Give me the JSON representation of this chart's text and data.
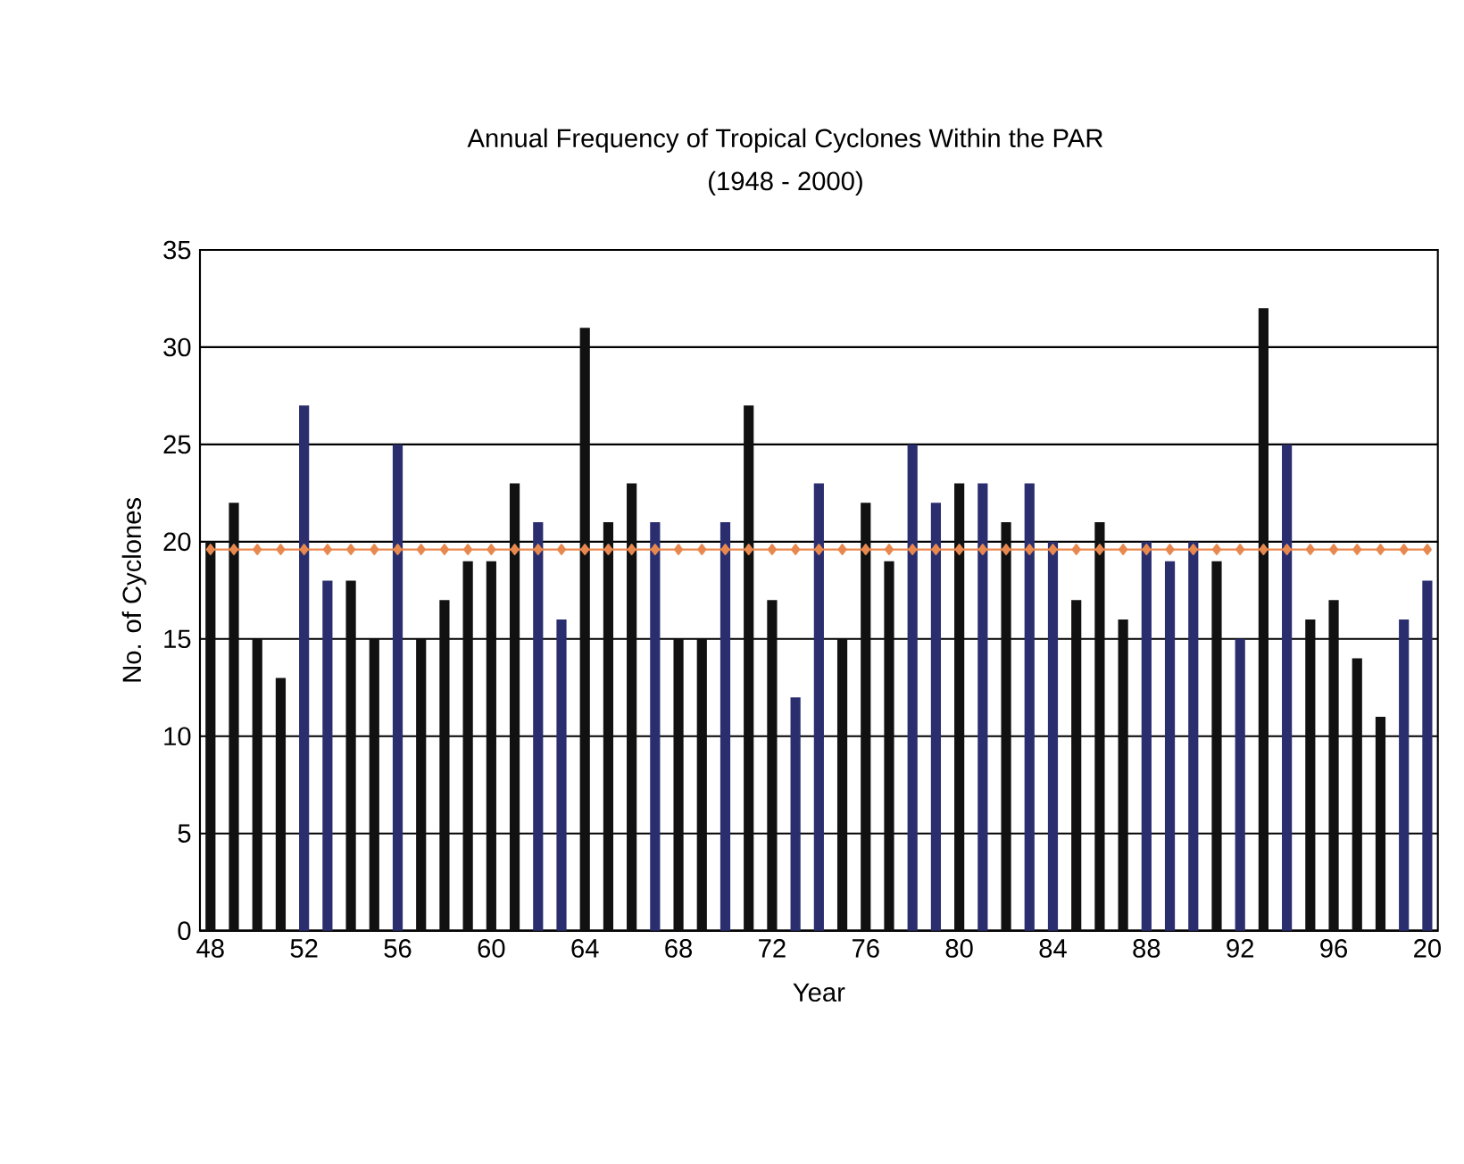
{
  "chart_data": {
    "type": "bar",
    "title": "Annual Frequency of Tropical Cyclones Within the PAR",
    "subtitle": "(1948 - 2000)",
    "xlabel": "Year",
    "ylabel": "No. of Cyclones",
    "categories": [
      "48",
      null,
      null,
      null,
      "52",
      null,
      null,
      null,
      "56",
      null,
      null,
      null,
      "60",
      null,
      null,
      null,
      "64",
      null,
      null,
      null,
      "68",
      null,
      null,
      null,
      "72",
      null,
      null,
      null,
      "76",
      null,
      null,
      null,
      "80",
      null,
      null,
      null,
      "84",
      null,
      null,
      null,
      "88",
      null,
      null,
      null,
      "92",
      null,
      null,
      null,
      "96",
      null,
      null,
      null,
      "20"
    ],
    "series": [
      {
        "colors": [
          "#111111",
          "#111111",
          "#111111",
          "#111111",
          "#2b2e6e",
          "#2b2e6e",
          "#111111",
          "#111111",
          "#2b2e6e",
          "#111111",
          "#111111",
          "#111111",
          "#111111",
          "#111111",
          "#2b2e6e",
          "#2b2e6e",
          "#111111",
          "#111111",
          "#111111",
          "#2b2e6e",
          "#111111",
          "#111111",
          "#2b2e6e",
          "#111111",
          "#111111",
          "#2b2e6e",
          "#2b2e6e",
          "#111111",
          "#111111",
          "#111111",
          "#2b2e6e",
          "#2b2e6e",
          "#111111",
          "#2b2e6e",
          "#111111",
          "#2b2e6e",
          "#2b2e6e",
          "#111111",
          "#111111",
          "#111111",
          "#2b2e6e",
          "#2b2e6e",
          "#2b2e6e",
          "#111111",
          "#2b2e6e",
          "#111111",
          "#2b2e6e",
          "#111111",
          "#111111",
          "#111111",
          "#111111",
          "#2b2e6e",
          "#2b2e6e"
        ],
        "values": [
          20,
          22,
          15,
          13,
          27,
          18,
          18,
          15,
          25,
          15,
          17,
          19,
          19,
          23,
          21,
          16,
          31,
          21,
          23,
          21,
          15,
          15,
          21,
          27,
          17,
          12,
          23,
          15,
          22,
          19,
          25,
          22,
          23,
          23,
          21,
          23,
          20,
          17,
          21,
          16,
          20,
          19,
          20,
          19,
          15,
          32,
          25,
          16,
          17,
          14,
          11,
          16,
          18
        ]
      },
      {
        "type": "line",
        "color": "#e8884e",
        "marker": "diamond",
        "values": [
          19.6,
          19.6,
          19.6,
          19.6,
          19.6,
          19.6,
          19.6,
          19.6,
          19.6,
          19.6,
          19.6,
          19.6,
          19.6,
          19.6,
          19.6,
          19.6,
          19.6,
          19.6,
          19.6,
          19.6,
          19.6,
          19.6,
          19.6,
          19.6,
          19.6,
          19.6,
          19.6,
          19.6,
          19.6,
          19.6,
          19.6,
          19.6,
          19.6,
          19.6,
          19.6,
          19.6,
          19.6,
          19.6,
          19.6,
          19.6,
          19.6,
          19.6,
          19.6,
          19.6,
          19.6,
          19.6,
          19.6,
          19.6,
          19.6,
          19.6,
          19.6,
          19.6,
          19.6
        ]
      }
    ],
    "ylim": [
      0,
      35
    ],
    "yticks": [
      0,
      5,
      10,
      15,
      20,
      25,
      30,
      35
    ],
    "grid": "y"
  }
}
